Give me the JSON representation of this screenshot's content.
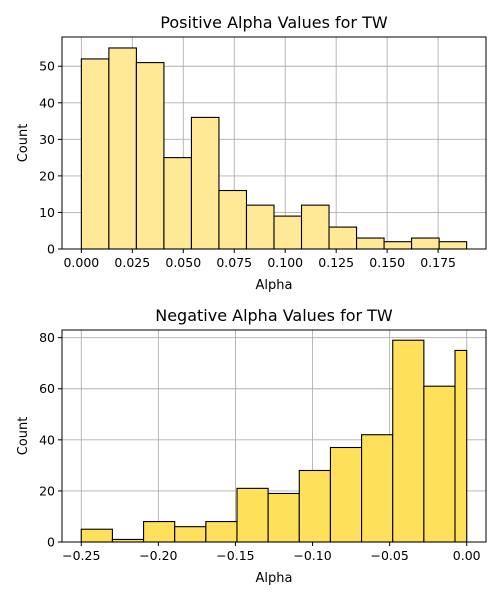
{
  "chart_data": [
    {
      "type": "bar",
      "title": "Positive Alpha Values for TW",
      "xlabel": "Alpha",
      "ylabel": "Count",
      "bin_edges": [
        0.0,
        0.0135,
        0.027,
        0.0405,
        0.054,
        0.0675,
        0.081,
        0.0945,
        0.108,
        0.1215,
        0.135,
        0.1485,
        0.162,
        0.1755,
        0.189
      ],
      "values": [
        52,
        55,
        51,
        25,
        36,
        16,
        12,
        9,
        12,
        6,
        3,
        2,
        3,
        2
      ],
      "xlim": [
        -0.0095,
        0.1985
      ],
      "ylim": [
        0,
        58
      ],
      "xticks": [
        0.0,
        0.025,
        0.05,
        0.075,
        0.1,
        0.125,
        0.15,
        0.175
      ],
      "xtick_labels": [
        "0.000",
        "0.025",
        "0.050",
        "0.075",
        "0.100",
        "0.125",
        "0.150",
        "0.175"
      ],
      "yticks": [
        0,
        10,
        20,
        30,
        40,
        50
      ],
      "ytick_labels": [
        "0",
        "10",
        "20",
        "30",
        "40",
        "50"
      ],
      "grid": true,
      "color": "#ffe896"
    },
    {
      "type": "bar",
      "title": "Negative Alpha Values for TW",
      "xlabel": "Alpha",
      "ylabel": "Count",
      "bin_edges": [
        -0.25,
        -0.2298,
        -0.2096,
        -0.1894,
        -0.1692,
        -0.149,
        -0.1288,
        -0.1086,
        -0.0884,
        -0.0682,
        -0.048,
        -0.0278,
        -0.0076,
        0.0
      ],
      "values": [
        5,
        1,
        8,
        6,
        8,
        21,
        19,
        28,
        37,
        42,
        79,
        61,
        75
      ],
      "xlim": [
        -0.2625,
        0.0125
      ],
      "ylim": [
        0,
        83
      ],
      "xticks": [
        -0.25,
        -0.2,
        -0.15,
        -0.1,
        -0.05,
        0.0
      ],
      "xtick_labels": [
        "−0.25",
        "−0.20",
        "−0.15",
        "−0.10",
        "−0.05",
        "0.00"
      ],
      "yticks": [
        0,
        20,
        40,
        60,
        80
      ],
      "ytick_labels": [
        "0",
        "20",
        "40",
        "60",
        "80"
      ],
      "grid": true,
      "color": "#ffe05a"
    }
  ]
}
